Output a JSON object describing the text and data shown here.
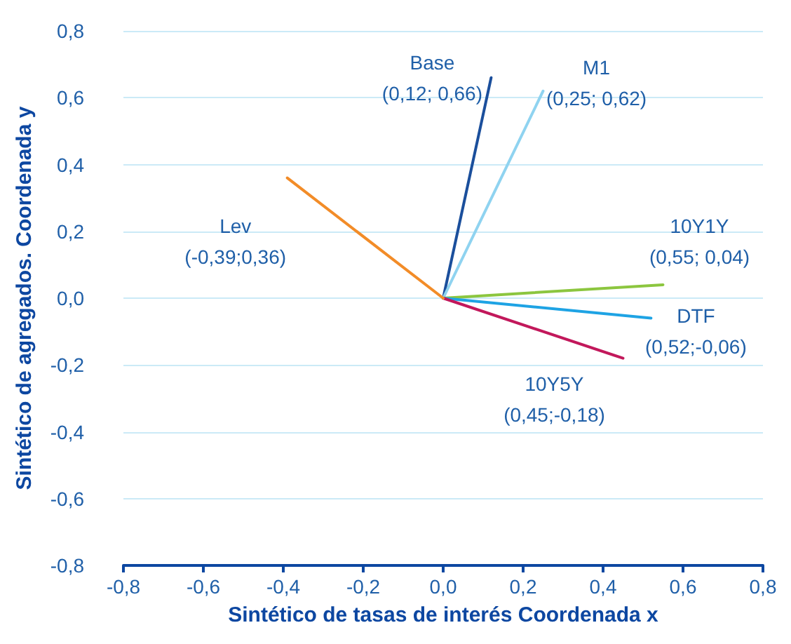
{
  "chart_data": {
    "type": "line",
    "xlabel": "Sintético de tasas de interés Coordenada x",
    "ylabel": "Sintético de agregados. Coordenada y",
    "xlim": [
      -0.8,
      0.8
    ],
    "ylim": [
      -0.8,
      0.8
    ],
    "xticks": [
      {
        "value": -0.8,
        "label": "-0,8"
      },
      {
        "value": -0.6,
        "label": "-0,6"
      },
      {
        "value": -0.4,
        "label": "-0,4"
      },
      {
        "value": -0.2,
        "label": "-0,2"
      },
      {
        "value": 0,
        "label": "0,0"
      },
      {
        "value": 0.2,
        "label": "0,2"
      },
      {
        "value": 0.4,
        "label": "0,4"
      },
      {
        "value": 0.6,
        "label": "0,6"
      },
      {
        "value": 0.8,
        "label": "0,8"
      }
    ],
    "yticks": [
      {
        "value": -0.8,
        "label": "-0,8"
      },
      {
        "value": -0.6,
        "label": "-0,6"
      },
      {
        "value": -0.4,
        "label": "-0,4"
      },
      {
        "value": -0.2,
        "label": "-0,2"
      },
      {
        "value": 0,
        "label": "0,0"
      },
      {
        "value": 0.2,
        "label": "0,2"
      },
      {
        "value": 0.4,
        "label": "0,4"
      },
      {
        "value": 0.6,
        "label": "0,6"
      },
      {
        "value": 0.8,
        "label": "0,8"
      }
    ],
    "grid": "y",
    "series": [
      {
        "name": "Base",
        "color": "#1b4f9c",
        "x": [
          0,
          0.12
        ],
        "values": [
          0,
          0.66
        ]
      },
      {
        "name": "M1",
        "color": "#8fd3f0",
        "x": [
          0,
          0.25
        ],
        "values": [
          0,
          0.62
        ]
      },
      {
        "name": "10Y1Y",
        "color": "#8cc63f",
        "x": [
          0,
          0.55
        ],
        "values": [
          0,
          0.04
        ]
      },
      {
        "name": "DTF",
        "color": "#1ea3e4",
        "x": [
          0,
          0.52
        ],
        "values": [
          0,
          -0.06
        ]
      },
      {
        "name": "10Y5Y",
        "color": "#c2185b",
        "x": [
          0,
          0.45
        ],
        "values": [
          0,
          -0.18
        ]
      },
      {
        "name": "Lev",
        "color": "#f28c28",
        "x": [
          0,
          -0.39
        ],
        "values": [
          0,
          0.36
        ]
      }
    ],
    "annotations": [
      "(0,12; 0,66)",
      "(0,25; 0,62)",
      "(0,55; 0,04)",
      "(0,52;-0,06)",
      "(0,45;-0,18)",
      "(-0,39;0,36)"
    ]
  }
}
